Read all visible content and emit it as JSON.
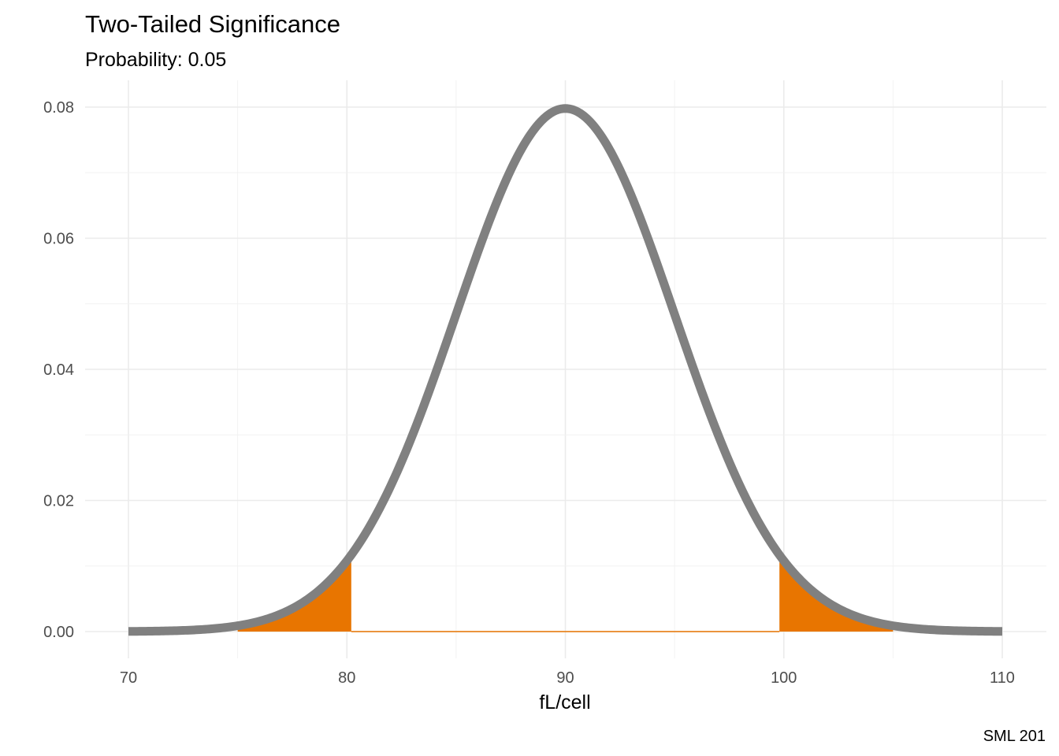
{
  "chart_data": {
    "type": "area",
    "title": "Two-Tailed Significance",
    "subtitle": "Probability: 0.05",
    "xlabel": "fL/cell",
    "ylabel": "",
    "caption": "SML 201",
    "distribution": "normal",
    "mean": 90,
    "sd": 5,
    "probability": 0.05,
    "critical_values": [
      80.2,
      99.8
    ],
    "shaded_regions": [
      [
        75,
        80.2
      ],
      [
        99.8,
        105
      ]
    ],
    "xlim": [
      70,
      110
    ],
    "ylim": [
      0,
      0.08
    ],
    "x_ticks": [
      70,
      80,
      90,
      100,
      110
    ],
    "x_tick_labels": [
      "70",
      "80",
      "90",
      "100",
      "110"
    ],
    "y_ticks": [
      0,
      0.02,
      0.04,
      0.06,
      0.08
    ],
    "y_tick_labels": [
      "0.00",
      "0.02",
      "0.04",
      "0.06",
      "0.08"
    ],
    "grid": true,
    "colors": {
      "curve": "#808080",
      "tail_fill": "#E87500",
      "grid": "#ebebeb"
    }
  }
}
